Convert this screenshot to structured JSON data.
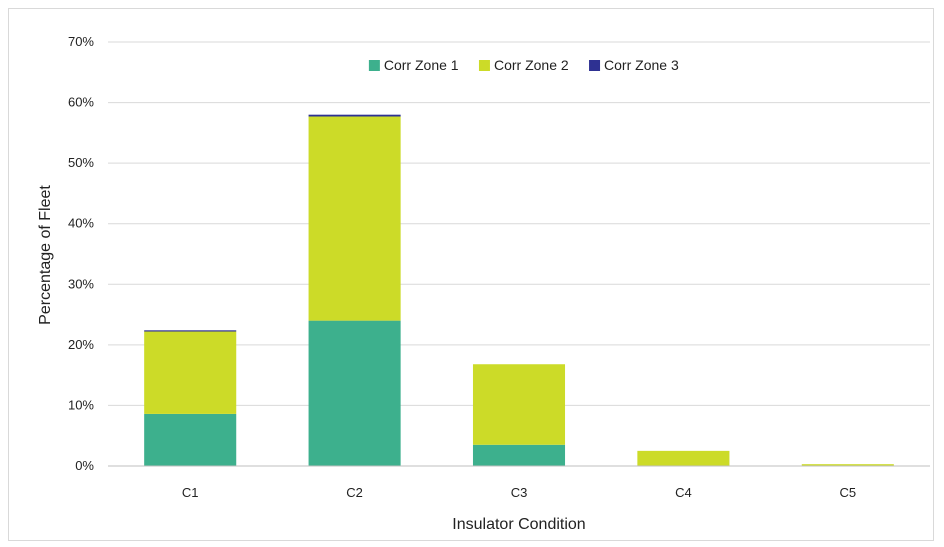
{
  "chart_data": {
    "type": "bar",
    "stacked": true,
    "categories": [
      "C1",
      "C2",
      "C3",
      "C4",
      "C5"
    ],
    "series": [
      {
        "name": "Corr Zone 1",
        "color": "#3db08d",
        "values": [
          8.6,
          24.0,
          3.5,
          0.0,
          0.0
        ]
      },
      {
        "name": "Corr Zone 2",
        "color": "#ccdb28",
        "values": [
          13.6,
          33.7,
          13.3,
          2.5,
          0.3
        ]
      },
      {
        "name": "Corr Zone 3",
        "color": "#2e3192",
        "values": [
          0.2,
          0.3,
          0.0,
          0.0,
          0.0
        ]
      }
    ],
    "title": "",
    "xlabel": "Insulator Condition",
    "ylabel": "Percentage of Fleet",
    "ylim": [
      0,
      70
    ],
    "yticks": [
      "0%",
      "10%",
      "20%",
      "30%",
      "40%",
      "50%",
      "60%",
      "70%"
    ],
    "grid": true,
    "legend_position": "top-center"
  }
}
